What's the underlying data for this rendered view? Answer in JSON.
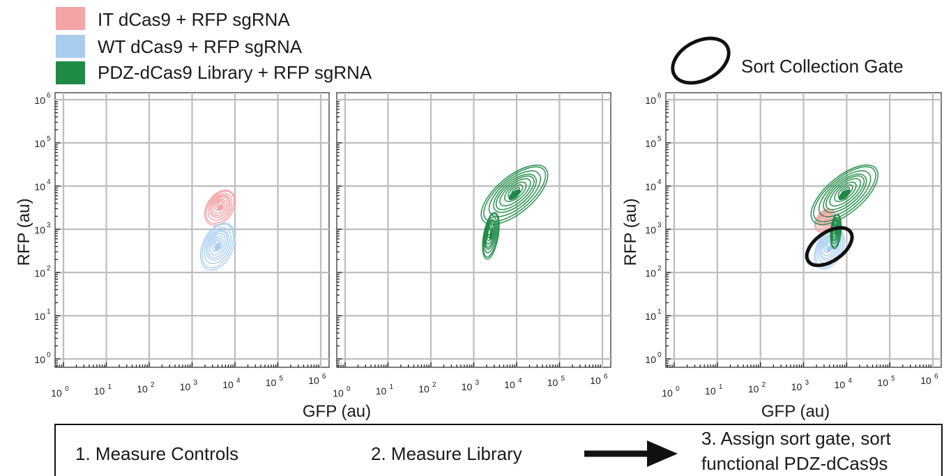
{
  "colors": {
    "it_series": "#f4a3a6",
    "wt_series": "#a9cdef",
    "library_series": "#1e8a45",
    "gate": "#111111",
    "grid": "#bdbdbd"
  },
  "legend": [
    {
      "label": "IT dCas9 + RFP sgRNA",
      "color": "#f4a3a6"
    },
    {
      "label": "WT dCas9 + RFP sgRNA",
      "color": "#a9cdef"
    },
    {
      "label": "PDZ-dCas9 Library + RFP sgRNA",
      "color": "#1e8a45"
    }
  ],
  "gate_legend": {
    "label": "Sort Collection Gate"
  },
  "axes": {
    "xlabel": "GFP (au)",
    "ylabel": "RFP (au)",
    "tick_base": "10",
    "tick_exponents": [
      "0",
      "1",
      "2",
      "3",
      "4",
      "5",
      "6"
    ]
  },
  "steps": [
    {
      "label": "1. Measure Controls"
    },
    {
      "label": "2. Measure Library"
    },
    {
      "label_line1": "3. Assign sort gate, sort",
      "label_line2": "functional PDZ-dCas9s"
    }
  ],
  "chart_data": [
    {
      "type": "scatter",
      "x_scale": "log",
      "y_scale": "log",
      "xlim": [
        1,
        1000000
      ],
      "ylim": [
        1,
        1000000
      ],
      "grid": true,
      "xlabel": "GFP (au)",
      "ylabel": "RFP (au)",
      "series": [
        {
          "name": "IT dCas9 + RFP sgRNA",
          "color": "#f4a3a6",
          "contours": [
            {
              "center_log": [
                3.65,
                3.5
              ],
              "spread_log": [
                0.45,
                0.3
              ],
              "angle_deg": -55
            }
          ]
        },
        {
          "name": "WT dCas9 + RFP sgRNA",
          "color": "#a9cdef",
          "contours": [
            {
              "center_log": [
                3.6,
                2.6
              ],
              "spread_log": [
                0.58,
                0.35
              ],
              "angle_deg": -65
            }
          ]
        }
      ]
    },
    {
      "type": "scatter",
      "x_scale": "log",
      "y_scale": "log",
      "xlim": [
        1,
        1000000
      ],
      "ylim": [
        1,
        1000000
      ],
      "grid": true,
      "xlabel": "GFP (au)",
      "ylabel": "",
      "series": [
        {
          "name": "PDZ-dCas9 Library + RFP sgRNA",
          "color": "#1e8a45",
          "contours": [
            {
              "center_log": [
                3.95,
                3.8
              ],
              "spread_log": [
                0.95,
                0.42
              ],
              "angle_deg": -40
            },
            {
              "center_log": [
                3.4,
                2.85
              ],
              "spread_log": [
                0.55,
                0.17
              ],
              "angle_deg": -80
            }
          ]
        }
      ]
    },
    {
      "type": "scatter",
      "x_scale": "log",
      "y_scale": "log",
      "xlim": [
        1,
        1000000
      ],
      "ylim": [
        1,
        1000000
      ],
      "grid": true,
      "xlabel": "GFP (au)",
      "ylabel": "RFP (au)",
      "series": [
        {
          "name": "WT dCas9 + RFP sgRNA",
          "color": "#a9cdef",
          "contours": [
            {
              "center_log": [
                3.6,
                2.55
              ],
              "spread_log": [
                0.5,
                0.3
              ],
              "angle_deg": -65
            }
          ]
        },
        {
          "name": "IT dCas9 + RFP sgRNA",
          "color": "#f4a3a6",
          "contours": [
            {
              "center_log": [
                3.5,
                3.2
              ],
              "spread_log": [
                0.3,
                0.2
              ],
              "angle_deg": -55
            }
          ]
        },
        {
          "name": "PDZ-dCas9 Library + RFP sgRNA",
          "color": "#1e8a45",
          "contours": [
            {
              "center_log": [
                3.95,
                3.8
              ],
              "spread_log": [
                0.95,
                0.42
              ],
              "angle_deg": -40
            },
            {
              "center_log": [
                3.75,
                2.95
              ],
              "spread_log": [
                0.4,
                0.12
              ],
              "angle_deg": -85
            }
          ]
        }
      ],
      "gate": {
        "label": "Sort Collection Gate",
        "center_log": [
          3.6,
          2.6
        ],
        "rx_log": 1.7,
        "ry_log": 0.55,
        "angle_deg": -35
      }
    }
  ]
}
